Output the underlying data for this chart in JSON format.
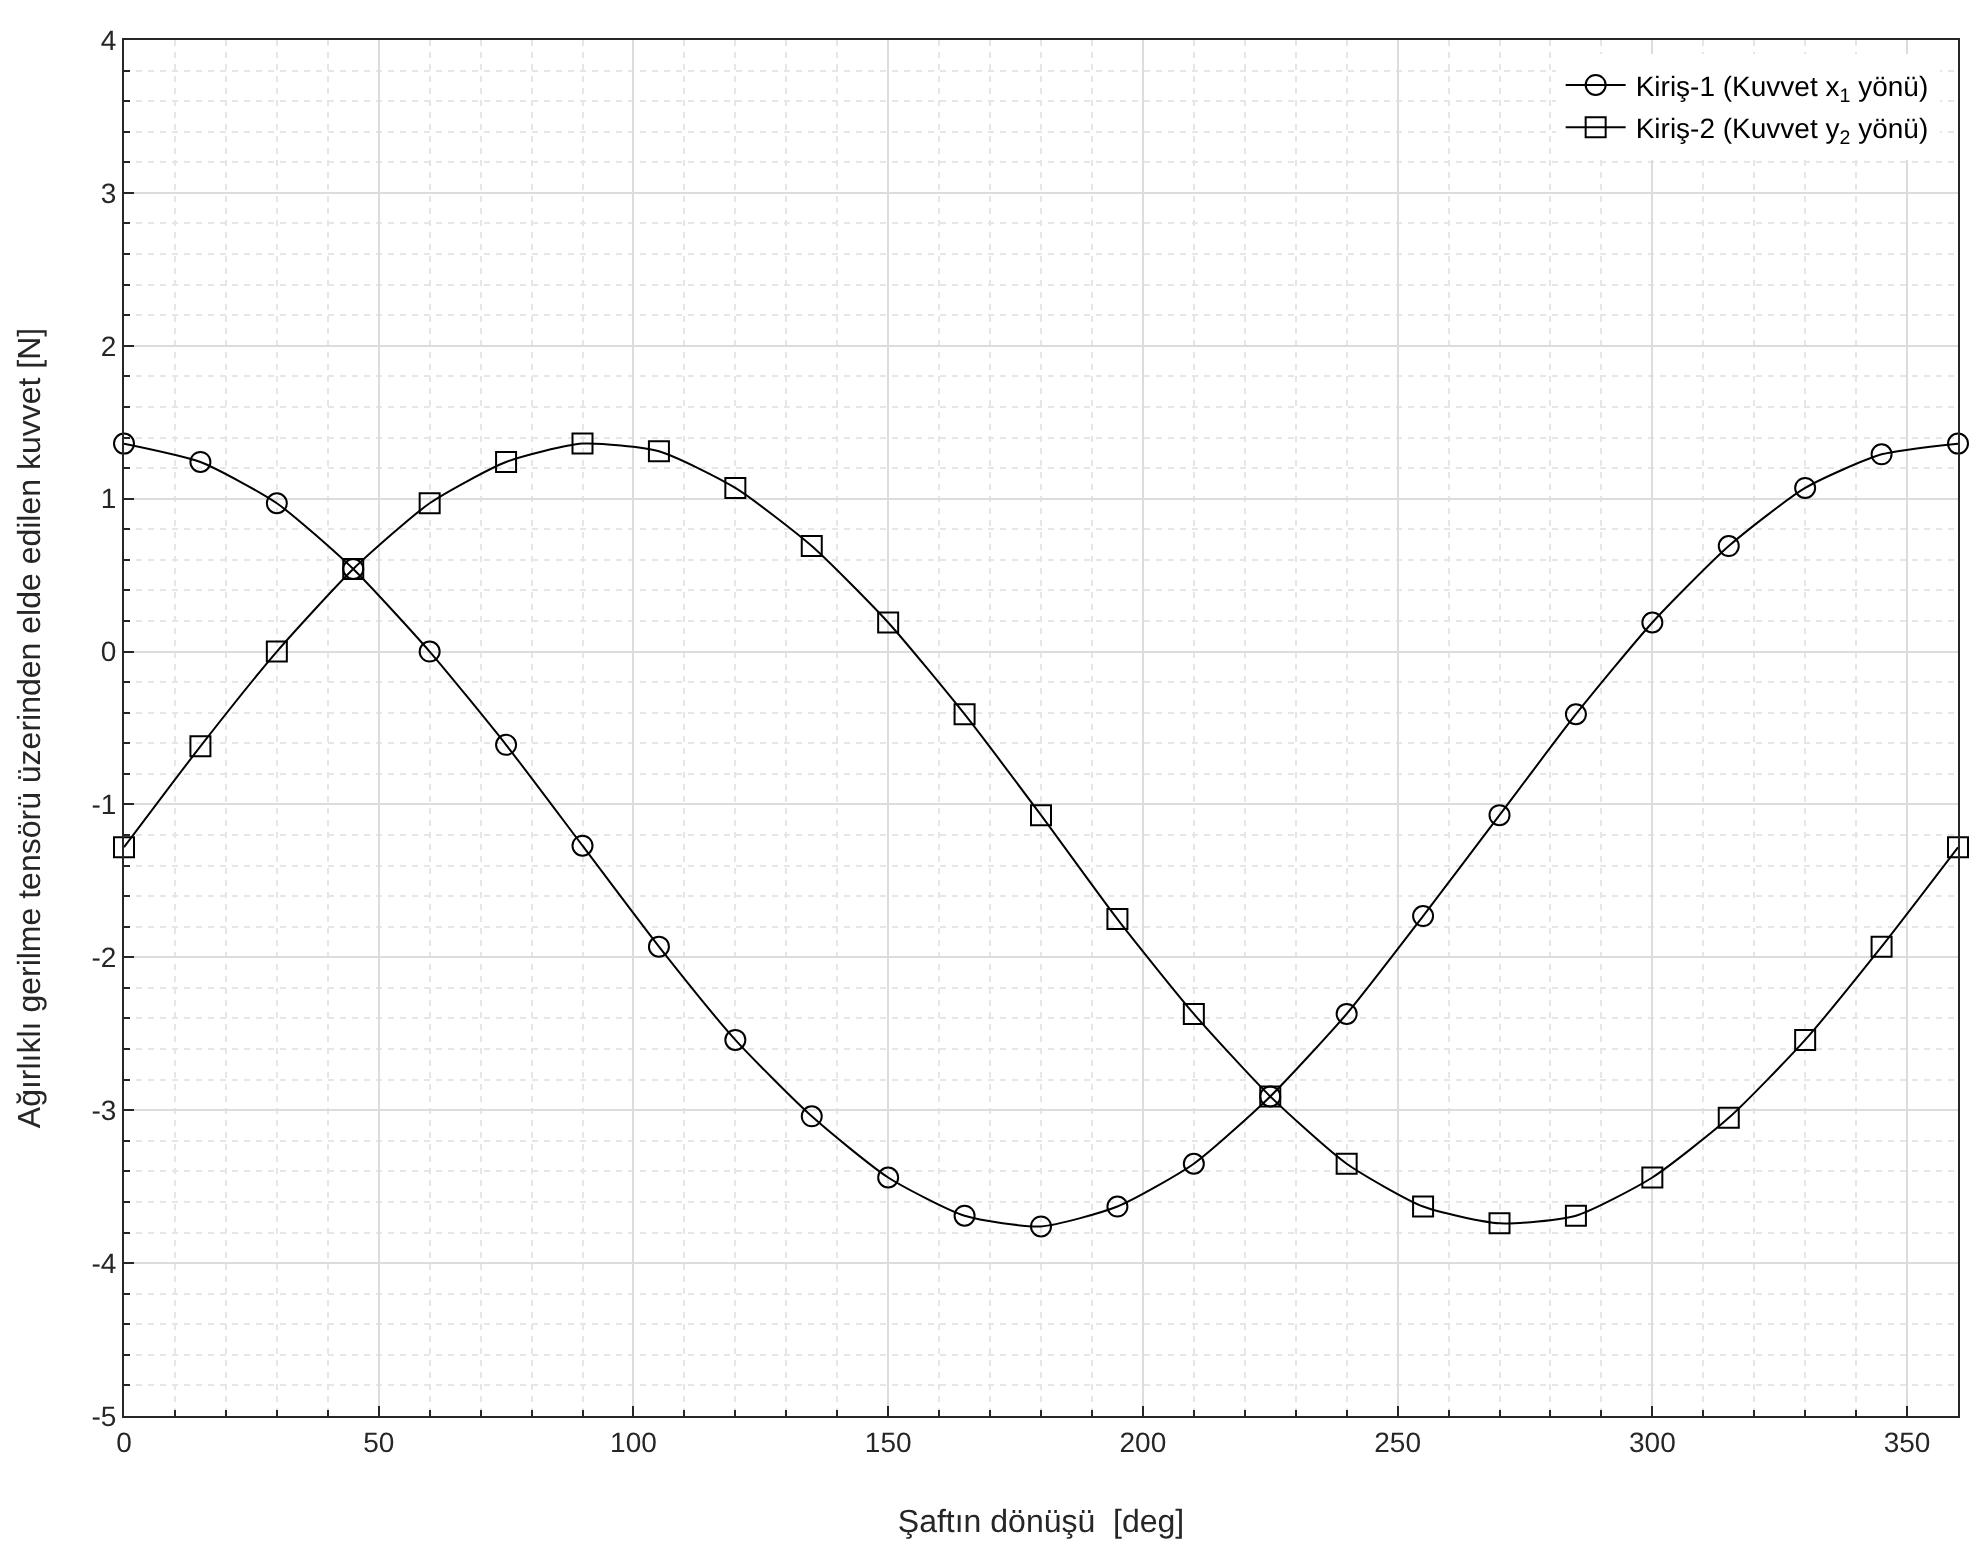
{
  "chart_data": {
    "type": "line",
    "xlabel": "Şaftın dönüşü  [deg]",
    "ylabel": "Ağırlıklı gerilme tensörü üzerinden elde edilen kuvvet [N]",
    "x": [
      0,
      15,
      30,
      45,
      60,
      75,
      90,
      105,
      120,
      135,
      150,
      165,
      180,
      195,
      210,
      225,
      240,
      255,
      270,
      285,
      300,
      315,
      330,
      345,
      360
    ],
    "series": [
      {
        "name": "Kiriş-1 (Kuvvet x$_{1}$ yönü)",
        "color": "#000000",
        "marker": "circle",
        "values": [
          1.36,
          1.24,
          0.97,
          0.54,
          0,
          -0.61,
          -1.27,
          -1.93,
          -2.54,
          -3.04,
          -3.44,
          -3.69,
          -3.76,
          -3.63,
          -3.35,
          -2.91,
          -2.37,
          -1.73,
          -1.07,
          -0.41,
          0.19,
          0.69,
          1.07,
          1.29,
          1.36
        ]
      },
      {
        "name": "Kiriş-2 (Kuvvet y$_{2}$ yönü)",
        "color": "#000000",
        "marker": "square",
        "values": [
          -1.28,
          -0.62,
          0,
          0.54,
          0.97,
          1.24,
          1.36,
          1.31,
          1.07,
          0.69,
          0.19,
          -0.41,
          -1.07,
          -1.75,
          -2.37,
          -2.91,
          -3.35,
          -3.63,
          -3.74,
          -3.69,
          -3.44,
          -3.05,
          -2.54,
          -1.93,
          -1.28
        ]
      }
    ],
    "xlim": [
      0,
      360
    ],
    "xticks": [
      0,
      50,
      100,
      150,
      200,
      250,
      300,
      350
    ],
    "ylim": [
      -5,
      4
    ],
    "yticks": [
      -5,
      -4,
      -3,
      -2,
      -1,
      0,
      1,
      2,
      3,
      4
    ],
    "grid": true,
    "legend": "top right",
    "line_style": "solid"
  }
}
